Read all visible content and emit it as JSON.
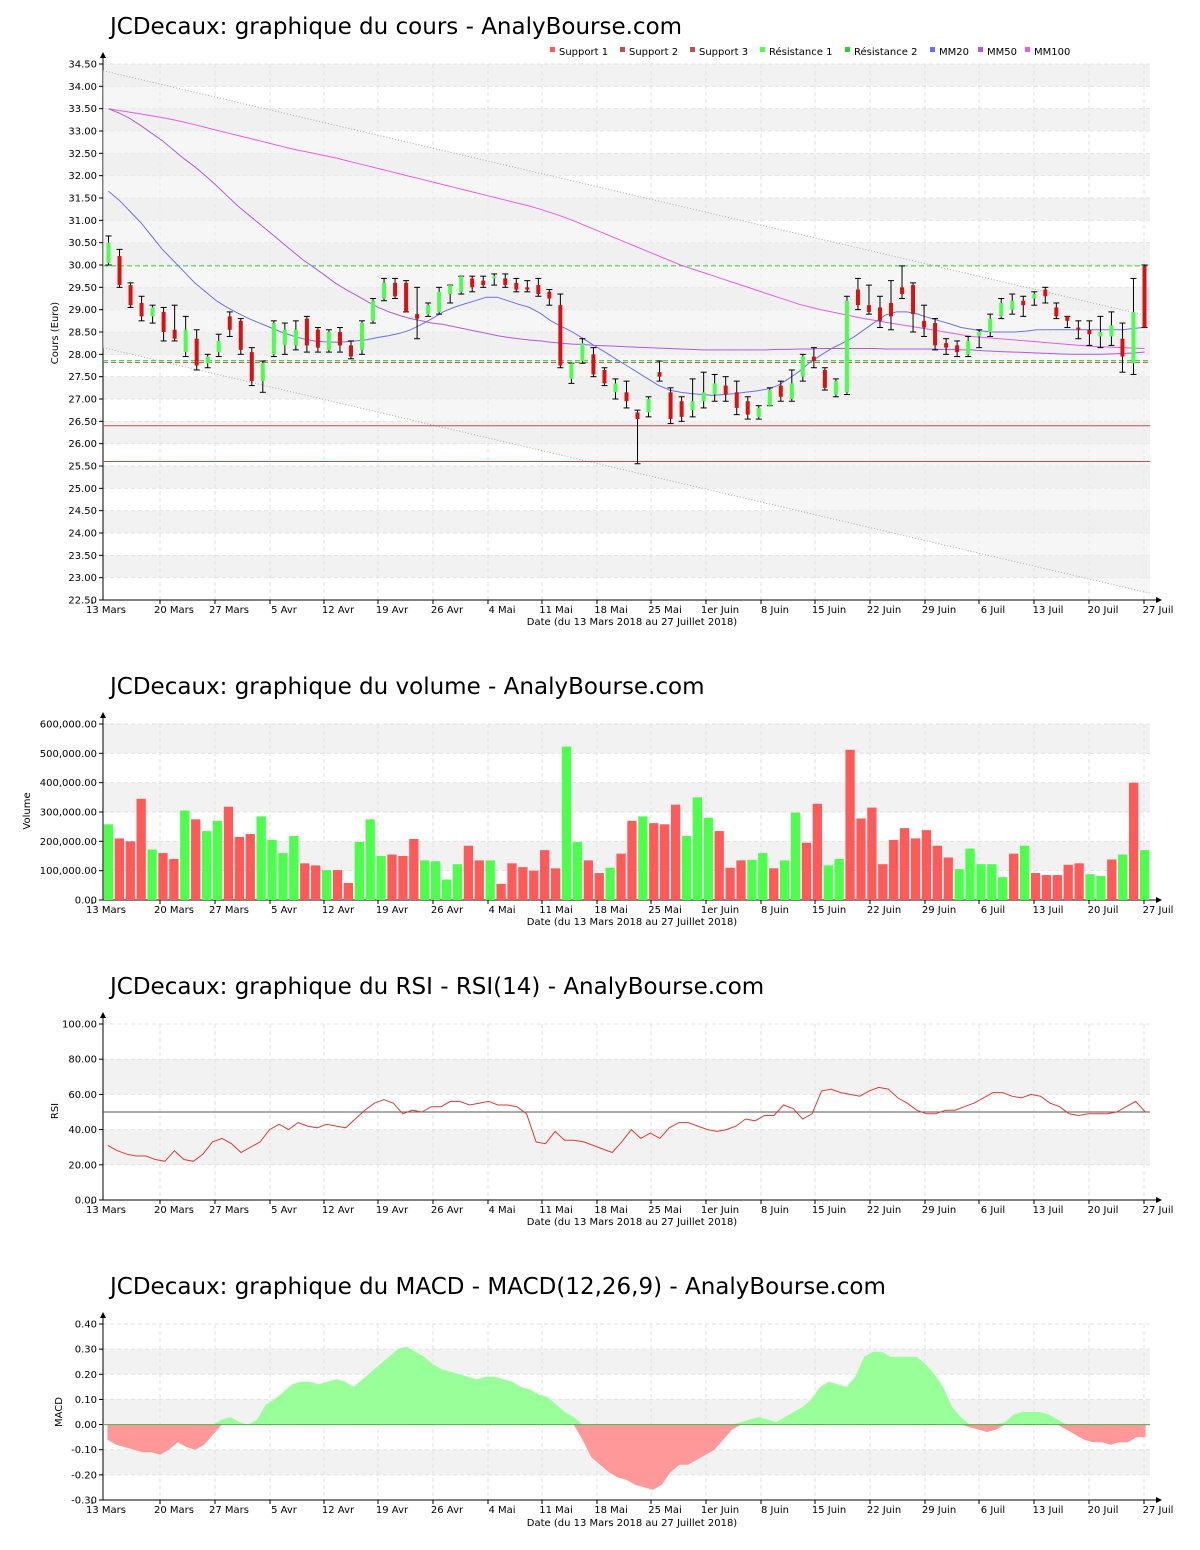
{
  "dates": [
    "13 Mars",
    "20 Mars",
    "27 Mars",
    "5 Avr",
    "12 Avr",
    "19 Avr",
    "26 Avr",
    "4 Mai",
    "11 Mai",
    "18 Mai",
    "25 Mai",
    "1er Juin",
    "8 Juin",
    "15 Juin",
    "22 Juin",
    "29 Juin",
    "6 Juil",
    "13 Juil",
    "20 Juil",
    "27 Juil"
  ],
  "x_axis_label": "Date (du 13 Mars 2018 au 27 Juillet 2018)",
  "colors": {
    "up": "#4cff4c",
    "down": "#ff5a5a",
    "mm20": "#6e6ef0",
    "mm50": "#b05ae0",
    "mm100": "#e85ae8",
    "support": "#c0504d",
    "resistance": "#33cc33",
    "macd_pos": "#99ff99",
    "macd_neg": "#ff9999",
    "rsi": "#e03a3a"
  },
  "chart_data": [
    {
      "type": "candlestick",
      "title": "JCDecaux: graphique du cours - AnalyBourse.com",
      "ylabel": "Cours (Euro)",
      "ylim": [
        22.5,
        34.5
      ],
      "yticks": [
        "22.50",
        "23.00",
        "23.50",
        "24.00",
        "24.50",
        "25.00",
        "25.50",
        "26.00",
        "26.50",
        "27.00",
        "27.50",
        "28.00",
        "28.50",
        "29.00",
        "29.50",
        "30.00",
        "30.50",
        "31.00",
        "31.50",
        "32.00",
        "32.50",
        "33.00",
        "33.50",
        "34.00",
        "34.50"
      ],
      "legend": [
        "Support 1",
        "Support 2",
        "Support 3",
        "Résistance 1",
        "Résistance 2",
        "MM20",
        "MM50",
        "MM100"
      ],
      "support_levels": [
        26.4,
        25.6,
        27.82
      ],
      "resistance_levels": [
        29.98,
        27.86
      ],
      "trend_upper": [
        34.35,
        28.85
      ],
      "trend_lower": [
        28.15,
        22.65
      ],
      "candles": [
        [
          30.05,
          30.5,
          30.65,
          30.0
        ],
        [
          30.2,
          29.55,
          30.35,
          29.5
        ],
        [
          29.55,
          29.1,
          29.6,
          29.05
        ],
        [
          29.15,
          28.85,
          29.3,
          28.75
        ],
        [
          28.85,
          29.05,
          29.1,
          28.7
        ],
        [
          28.95,
          28.5,
          29.05,
          28.3
        ],
        [
          28.55,
          28.35,
          29.1,
          28.3
        ],
        [
          28.05,
          28.55,
          28.85,
          27.95
        ],
        [
          28.35,
          27.75,
          28.55,
          27.65
        ],
        [
          27.8,
          27.95,
          28.0,
          27.7
        ],
        [
          28.05,
          28.3,
          28.45,
          27.95
        ],
        [
          28.85,
          28.55,
          28.95,
          28.4
        ],
        [
          28.75,
          28.1,
          28.8,
          28.0
        ],
        [
          28.05,
          27.4,
          28.15,
          27.3
        ],
        [
          27.4,
          27.8,
          27.85,
          27.15
        ],
        [
          28.0,
          28.7,
          28.75,
          27.95
        ],
        [
          28.2,
          28.55,
          28.7,
          28.0
        ],
        [
          28.2,
          28.55,
          28.75,
          28.1
        ],
        [
          28.8,
          28.2,
          28.85,
          28.05
        ],
        [
          28.55,
          28.15,
          28.6,
          28.05
        ],
        [
          28.1,
          28.5,
          28.55,
          28.05
        ],
        [
          28.5,
          28.2,
          28.6,
          28.05
        ],
        [
          28.2,
          27.95,
          28.3,
          27.9
        ],
        [
          28.1,
          28.7,
          28.75,
          28.0
        ],
        [
          28.75,
          29.2,
          29.25,
          28.7
        ],
        [
          29.25,
          29.6,
          29.7,
          29.2
        ],
        [
          29.6,
          29.3,
          29.7,
          29.25
        ],
        [
          29.6,
          28.95,
          29.65,
          28.95
        ],
        [
          28.9,
          28.8,
          29.5,
          28.35
        ],
        [
          28.9,
          29.1,
          29.15,
          28.85
        ],
        [
          28.95,
          29.4,
          29.5,
          28.9
        ],
        [
          29.35,
          29.55,
          29.55,
          29.15
        ],
        [
          29.4,
          29.75,
          29.75,
          29.35
        ],
        [
          29.7,
          29.5,
          29.75,
          29.4
        ],
        [
          29.65,
          29.55,
          29.75,
          29.5
        ],
        [
          29.7,
          29.75,
          29.8,
          29.55
        ],
        [
          29.7,
          29.55,
          29.8,
          29.5
        ],
        [
          29.6,
          29.45,
          29.7,
          29.4
        ],
        [
          29.5,
          29.45,
          29.65,
          29.4
        ],
        [
          29.55,
          29.35,
          29.7,
          29.3
        ],
        [
          29.4,
          29.25,
          29.45,
          29.1
        ],
        [
          29.1,
          27.75,
          29.35,
          27.7
        ],
        [
          27.45,
          27.8,
          27.8,
          27.35
        ],
        [
          27.85,
          28.25,
          28.35,
          27.8
        ],
        [
          28.0,
          27.55,
          28.15,
          27.5
        ],
        [
          27.65,
          27.35,
          27.7,
          27.3
        ],
        [
          27.15,
          27.35,
          27.45,
          27.0
        ],
        [
          27.15,
          26.95,
          27.4,
          26.8
        ],
        [
          26.7,
          26.55,
          26.75,
          25.55
        ],
        [
          26.7,
          27.0,
          27.05,
          26.6
        ],
        [
          27.6,
          27.5,
          27.85,
          27.4
        ],
        [
          27.15,
          26.55,
          27.25,
          26.45
        ],
        [
          26.95,
          26.6,
          27.05,
          26.5
        ],
        [
          26.75,
          26.95,
          27.45,
          26.6
        ],
        [
          26.95,
          27.15,
          27.6,
          26.8
        ],
        [
          27.1,
          27.35,
          27.55,
          26.95
        ],
        [
          27.3,
          27.1,
          27.5,
          26.95
        ],
        [
          27.15,
          26.8,
          27.4,
          26.65
        ],
        [
          26.95,
          26.65,
          27.05,
          26.55
        ],
        [
          26.6,
          26.8,
          26.85,
          26.55
        ],
        [
          26.85,
          27.2,
          27.25,
          26.85
        ],
        [
          27.3,
          27.05,
          27.4,
          26.95
        ],
        [
          27.0,
          27.35,
          27.65,
          26.95
        ],
        [
          27.5,
          27.95,
          28.0,
          27.4
        ],
        [
          27.95,
          27.85,
          28.15,
          27.7
        ],
        [
          27.65,
          27.25,
          27.7,
          27.2
        ],
        [
          27.1,
          27.4,
          27.45,
          27.05
        ],
        [
          27.15,
          29.2,
          29.3,
          27.1
        ],
        [
          29.45,
          29.1,
          29.7,
          29.0
        ],
        [
          29.1,
          28.95,
          29.55,
          28.9
        ],
        [
          29.05,
          28.75,
          29.3,
          28.6
        ],
        [
          29.15,
          28.85,
          29.65,
          28.55
        ],
        [
          29.5,
          29.35,
          29.98,
          29.25
        ],
        [
          29.55,
          28.9,
          29.6,
          28.5
        ],
        [
          28.75,
          28.6,
          29.1,
          28.4
        ],
        [
          28.7,
          28.2,
          28.8,
          28.1
        ],
        [
          28.25,
          28.15,
          28.35,
          28.0
        ],
        [
          28.2,
          28.05,
          28.3,
          27.95
        ],
        [
          28.0,
          28.3,
          28.4,
          27.95
        ],
        [
          28.4,
          28.5,
          28.55,
          28.15
        ],
        [
          28.5,
          28.8,
          28.9,
          28.4
        ],
        [
          28.85,
          29.15,
          29.25,
          28.8
        ],
        [
          29.0,
          29.2,
          29.35,
          28.9
        ],
        [
          29.2,
          29.1,
          29.3,
          28.85
        ],
        [
          29.25,
          29.35,
          29.4,
          29.1
        ],
        [
          29.45,
          29.3,
          29.5,
          29.15
        ],
        [
          29.05,
          28.85,
          29.15,
          28.8
        ],
        [
          28.85,
          28.75,
          28.85,
          28.6
        ],
        [
          28.6,
          28.55,
          28.75,
          28.35
        ],
        [
          28.55,
          28.45,
          28.75,
          28.2
        ],
        [
          28.4,
          28.5,
          28.85,
          28.15
        ],
        [
          28.4,
          28.65,
          28.95,
          28.2
        ],
        [
          28.35,
          27.95,
          28.7,
          27.6
        ],
        [
          27.8,
          28.95,
          29.7,
          27.55
        ],
        [
          29.98,
          28.6,
          30.0,
          28.6
        ]
      ],
      "mm20": [
        31.65,
        31.45,
        31.2,
        30.95,
        30.65,
        30.35,
        30.1,
        29.85,
        29.6,
        29.4,
        29.2,
        29.05,
        28.92,
        28.8,
        28.7,
        28.6,
        28.5,
        28.42,
        28.35,
        28.3,
        28.28,
        28.27,
        28.28,
        28.3,
        28.33,
        28.38,
        28.42,
        28.47,
        28.55,
        28.67,
        28.8,
        28.95,
        29.05,
        29.13,
        29.2,
        29.28,
        29.28,
        29.2,
        29.12,
        29.05,
        28.92,
        28.75,
        28.62,
        28.5,
        28.35,
        28.2,
        28.05,
        27.9,
        27.75,
        27.6,
        27.45,
        27.3,
        27.2,
        27.15,
        27.12,
        27.1,
        27.08,
        27.1,
        27.12,
        27.15,
        27.18,
        27.22,
        27.3,
        27.45,
        27.62,
        27.82,
        27.98,
        28.13,
        28.25,
        28.38,
        28.55,
        28.72,
        28.88,
        28.95,
        28.95,
        28.9,
        28.82,
        28.75,
        28.68,
        28.6,
        28.56,
        28.52,
        28.5,
        28.5,
        28.5,
        28.52,
        28.55,
        28.55,
        28.55,
        28.55,
        28.55,
        28.55,
        28.55,
        28.55,
        28.55,
        28.58,
        28.6
      ],
      "mm50": [
        33.5,
        33.4,
        33.28,
        33.12,
        32.95,
        32.78,
        32.58,
        32.38,
        32.2,
        32.0,
        31.78,
        31.55,
        31.32,
        31.12,
        30.92,
        30.72,
        30.52,
        30.32,
        30.12,
        29.95,
        29.78,
        29.6,
        29.45,
        29.32,
        29.18,
        29.05,
        28.95,
        28.87,
        28.8,
        28.75,
        28.7,
        28.67,
        28.62,
        28.57,
        28.52,
        28.47,
        28.42,
        28.38,
        28.35,
        28.32,
        28.3,
        28.27,
        28.25,
        28.23,
        28.22,
        28.2,
        28.19,
        28.18,
        28.17,
        28.16,
        28.15,
        28.14,
        28.13,
        28.12,
        28.11,
        28.1,
        28.1,
        28.1,
        28.1,
        28.1,
        28.1,
        28.1,
        28.11,
        28.11,
        28.12,
        28.12,
        28.13,
        28.13,
        28.13,
        28.13,
        28.13,
        28.13,
        28.12,
        28.12,
        28.12,
        28.12,
        28.12,
        28.11,
        28.11,
        28.1,
        28.1,
        28.08,
        28.07,
        28.06,
        28.05,
        28.04,
        28.03,
        28.02,
        28.01,
        28.0,
        28.0,
        28.0,
        28.0,
        28.01,
        28.02,
        28.03,
        28.05
      ],
      "mm100": [
        33.5,
        33.46,
        33.42,
        33.38,
        33.34,
        33.3,
        33.25,
        33.2,
        33.14,
        33.08,
        33.02,
        32.96,
        32.9,
        32.84,
        32.78,
        32.72,
        32.66,
        32.6,
        32.55,
        32.5,
        32.45,
        32.4,
        32.34,
        32.28,
        32.22,
        32.16,
        32.1,
        32.04,
        31.98,
        31.92,
        31.86,
        31.8,
        31.74,
        31.68,
        31.62,
        31.56,
        31.5,
        31.44,
        31.38,
        31.32,
        31.25,
        31.17,
        31.09,
        31.0,
        30.9,
        30.8,
        30.7,
        30.6,
        30.5,
        30.4,
        30.3,
        30.2,
        30.1,
        30.0,
        29.92,
        29.84,
        29.76,
        29.68,
        29.6,
        29.52,
        29.44,
        29.36,
        29.28,
        29.2,
        29.12,
        29.06,
        29.0,
        28.95,
        28.9,
        28.85,
        28.8,
        28.76,
        28.72,
        28.68,
        28.64,
        28.6,
        28.56,
        28.52,
        28.48,
        28.44,
        28.4,
        28.38,
        28.36,
        28.34,
        28.32,
        28.3,
        28.28,
        28.26,
        28.24,
        28.22,
        28.2,
        28.18,
        28.17,
        28.16,
        28.15,
        28.14,
        28.13
      ]
    },
    {
      "type": "bar",
      "title": "JCDecaux: graphique du volume - AnalyBourse.com",
      "ylabel": "Volume",
      "ylim": [
        0,
        600000
      ],
      "yticks": [
        "0.00",
        "100,000.00",
        "200,000.00",
        "300,000.00",
        "400,000.00",
        "500,000.00",
        "600,000.00"
      ],
      "values": [
        258000,
        210000,
        200000,
        345000,
        172000,
        160000,
        140000,
        305000,
        275000,
        235000,
        270000,
        318000,
        215000,
        225000,
        285000,
        205000,
        160000,
        218000,
        125000,
        118000,
        102000,
        102000,
        58000,
        198000,
        275000,
        150000,
        155000,
        150000,
        208000,
        135000,
        132000,
        70000,
        122000,
        185000,
        135000,
        135000,
        55000,
        125000,
        112000,
        100000,
        170000,
        108000,
        523000,
        198000,
        135000,
        92000,
        110000,
        158000,
        270000,
        285000,
        262000,
        258000,
        325000,
        218000,
        350000,
        280000,
        235000,
        110000,
        135000,
        137000,
        160000,
        108000,
        135000,
        298000,
        195000,
        328000,
        118000,
        140000,
        512000,
        278000,
        315000,
        122000,
        205000,
        245000,
        210000,
        238000,
        185000,
        145000,
        105000,
        175000,
        122000,
        122000,
        78000,
        158000,
        185000,
        92000,
        85000,
        85000,
        120000,
        125000,
        88000,
        82000,
        138000,
        155000,
        400000,
        170000
      ]
    },
    {
      "type": "line",
      "title": "JCDecaux: graphique du RSI - RSI(14) - AnalyBourse.com",
      "ylabel": "RSI",
      "ylim": [
        0,
        100
      ],
      "yticks": [
        "0.00",
        "20.00",
        "40.00",
        "60.00",
        "80.00",
        "100.00"
      ],
      "reference_line": 50,
      "values": [
        31,
        28,
        26,
        25,
        25,
        23,
        22,
        28,
        23,
        22,
        26,
        33,
        35,
        32,
        27,
        30,
        33,
        40,
        43,
        40,
        44,
        42,
        41,
        43,
        42,
        41,
        46,
        51,
        55,
        57,
        55,
        49,
        51,
        50,
        53,
        53,
        56,
        56,
        54,
        55,
        56,
        54,
        54,
        53,
        49,
        33,
        32,
        39,
        34,
        34,
        33,
        31,
        29,
        27,
        33,
        40,
        35,
        38,
        35,
        41,
        44,
        44,
        42,
        40,
        39,
        40,
        42,
        46,
        45,
        48,
        48,
        54,
        52,
        46,
        49,
        62,
        63,
        61,
        60,
        59,
        62,
        64,
        63,
        58,
        55,
        51,
        49,
        49,
        51,
        51,
        53,
        55,
        58,
        61,
        61,
        59,
        58,
        60,
        59,
        55,
        53,
        49,
        48,
        49,
        49,
        49,
        50,
        53,
        56,
        50
      ]
    },
    {
      "type": "area",
      "title": "JCDecaux: graphique du MACD - MACD(12,26,9) - AnalyBourse.com",
      "ylabel": "MACD",
      "ylim": [
        -0.3,
        0.4
      ],
      "yticks": [
        "-0.30",
        "-0.20",
        "-0.10",
        "0.00",
        "0.10",
        "0.20",
        "0.30",
        "0.40"
      ],
      "values": [
        -0.06,
        -0.08,
        -0.09,
        -0.1,
        -0.11,
        -0.11,
        -0.12,
        -0.1,
        -0.07,
        -0.09,
        -0.1,
        -0.08,
        -0.04,
        0.02,
        0.03,
        0.01,
        0.0,
        0.02,
        0.08,
        0.1,
        0.13,
        0.16,
        0.17,
        0.17,
        0.16,
        0.17,
        0.18,
        0.17,
        0.15,
        0.18,
        0.21,
        0.24,
        0.27,
        0.3,
        0.31,
        0.29,
        0.27,
        0.24,
        0.22,
        0.21,
        0.2,
        0.19,
        0.18,
        0.19,
        0.19,
        0.18,
        0.17,
        0.15,
        0.14,
        0.12,
        0.11,
        0.08,
        0.05,
        0.03,
        -0.06,
        -0.13,
        -0.16,
        -0.19,
        -0.21,
        -0.22,
        -0.24,
        -0.25,
        -0.26,
        -0.24,
        -0.19,
        -0.16,
        -0.16,
        -0.14,
        -0.12,
        -0.1,
        -0.06,
        -0.02,
        0.01,
        0.02,
        0.03,
        0.02,
        0.01,
        0.03,
        0.05,
        0.07,
        0.1,
        0.15,
        0.17,
        0.16,
        0.15,
        0.19,
        0.27,
        0.29,
        0.29,
        0.27,
        0.27,
        0.27,
        0.27,
        0.24,
        0.2,
        0.15,
        0.07,
        0.03,
        -0.01,
        -0.02,
        -0.03,
        -0.02,
        0.01,
        0.04,
        0.05,
        0.05,
        0.05,
        0.04,
        0.02,
        -0.02,
        -0.04,
        -0.06,
        -0.07,
        -0.07,
        -0.08,
        -0.07,
        -0.07,
        -0.05,
        -0.05
      ]
    }
  ]
}
